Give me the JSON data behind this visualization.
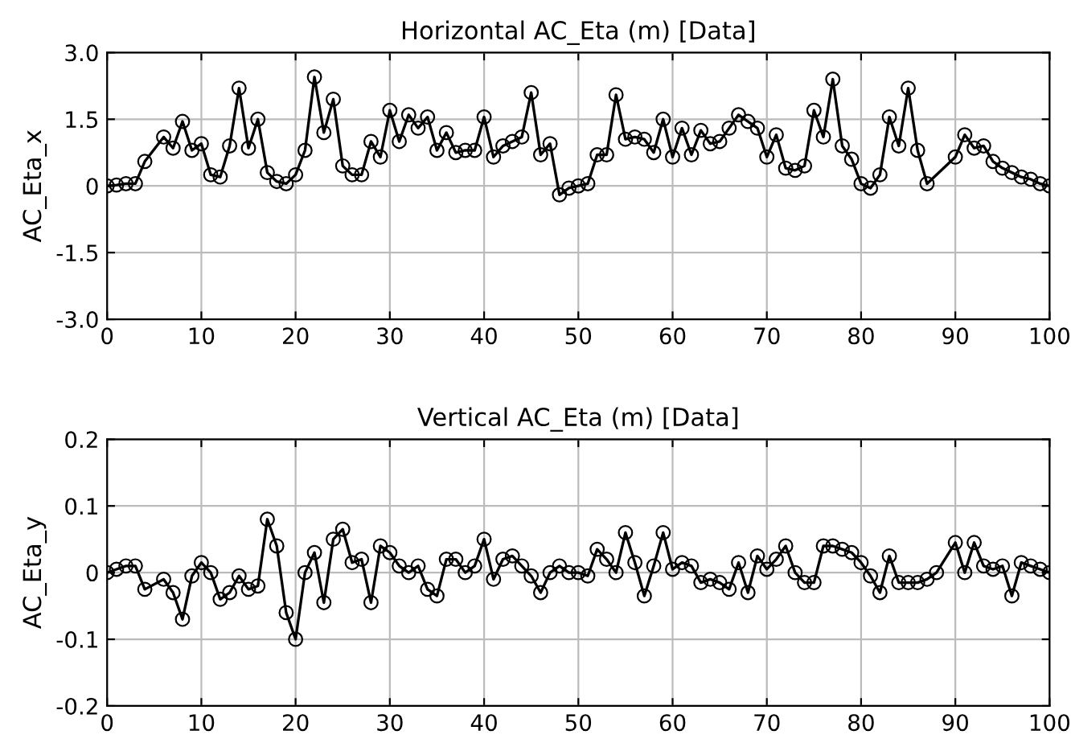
{
  "chart_data": [
    {
      "type": "line",
      "title": "Horizontal AC_Eta (m) [Data]",
      "ylabel": "AC_Eta_x",
      "grid": true,
      "marker": "circle",
      "line_style": "solid",
      "xlim": [
        0,
        100
      ],
      "xticks": [
        0,
        10,
        20,
        30,
        40,
        50,
        60,
        70,
        80,
        90,
        100
      ],
      "ylim": [
        -3.0,
        3.0
      ],
      "yticks": [
        {
          "value": -3.0,
          "label": "-3.0"
        },
        {
          "value": -1.5,
          "label": "-1.5"
        },
        0,
        1.5,
        {
          "value": 3.0,
          "label": "3.0"
        }
      ],
      "series": [
        {
          "color": "#000000",
          "x": [
            0,
            1,
            2,
            3,
            4,
            6,
            7,
            8,
            9,
            10,
            11,
            12,
            13,
            14,
            15,
            16,
            17,
            18,
            19,
            20,
            21,
            22,
            23,
            24,
            25,
            26,
            27,
            28,
            29,
            30,
            31,
            32,
            33,
            34,
            35,
            36,
            37,
            38,
            39,
            40,
            41,
            42,
            43,
            44,
            45,
            46,
            47,
            48,
            49,
            50,
            51,
            52,
            53,
            54,
            55,
            56,
            57,
            58,
            59,
            60,
            61,
            62,
            63,
            64,
            65,
            66,
            67,
            68,
            69,
            70,
            71,
            72,
            73,
            74,
            75,
            76,
            77,
            78,
            79,
            80,
            81,
            82,
            83,
            84,
            85,
            86,
            87,
            90,
            91,
            92,
            93,
            94,
            95,
            96,
            97,
            98,
            99,
            100
          ],
          "values": [
            0,
            0.02,
            0.05,
            0.05,
            0.55,
            1.1,
            0.85,
            1.45,
            0.8,
            0.95,
            0.25,
            0.2,
            0.9,
            2.2,
            0.85,
            1.5,
            0.3,
            0.1,
            0.05,
            0.25,
            0.8,
            2.45,
            1.2,
            1.95,
            0.45,
            0.25,
            0.25,
            1.0,
            0.65,
            1.7,
            1.0,
            1.6,
            1.3,
            1.55,
            0.8,
            1.2,
            0.75,
            0.8,
            0.8,
            1.55,
            0.65,
            0.9,
            1.0,
            1.1,
            2.1,
            0.7,
            0.95,
            -0.2,
            -0.05,
            0.0,
            0.05,
            0.7,
            0.7,
            2.05,
            1.05,
            1.1,
            1.05,
            0.75,
            1.5,
            0.65,
            1.3,
            0.7,
            1.25,
            0.95,
            1.0,
            1.3,
            1.6,
            1.45,
            1.3,
            0.65,
            1.15,
            0.4,
            0.35,
            0.45,
            1.7,
            1.1,
            2.4,
            0.9,
            0.6,
            0.05,
            -0.05,
            0.25,
            1.55,
            0.9,
            2.2,
            0.8,
            0.05,
            0.65,
            1.15,
            0.85,
            0.9,
            0.55,
            0.4,
            0.3,
            0.2,
            0.15,
            0.05,
            0.0
          ]
        }
      ]
    },
    {
      "type": "line",
      "title": "Vertical AC_Eta (m) [Data]",
      "ylabel": "AC_Eta_y",
      "grid": true,
      "marker": "circle",
      "line_style": "solid",
      "xlim": [
        0,
        100
      ],
      "xticks": [
        0,
        10,
        20,
        30,
        40,
        50,
        60,
        70,
        80,
        90,
        100
      ],
      "ylim": [
        -0.2,
        0.2
      ],
      "yticks": [
        -0.2,
        -0.1,
        0,
        0.1,
        0.2
      ],
      "series": [
        {
          "color": "#000000",
          "x": [
            0,
            1,
            2,
            3,
            4,
            6,
            7,
            8,
            9,
            10,
            11,
            12,
            13,
            14,
            15,
            16,
            17,
            18,
            19,
            20,
            21,
            22,
            23,
            24,
            25,
            26,
            27,
            28,
            29,
            30,
            31,
            32,
            33,
            34,
            35,
            36,
            37,
            38,
            39,
            40,
            41,
            42,
            43,
            44,
            45,
            46,
            47,
            48,
            49,
            50,
            51,
            52,
            53,
            54,
            55,
            56,
            57,
            58,
            59,
            60,
            61,
            62,
            63,
            64,
            65,
            66,
            67,
            68,
            69,
            70,
            71,
            72,
            73,
            74,
            75,
            76,
            77,
            78,
            79,
            80,
            81,
            82,
            83,
            84,
            85,
            86,
            87,
            88,
            90,
            91,
            92,
            93,
            94,
            95,
            96,
            97,
            98,
            99,
            100
          ],
          "values": [
            0,
            0.005,
            0.01,
            0.01,
            -0.025,
            -0.01,
            -0.03,
            -0.07,
            -0.005,
            0.015,
            0.0,
            -0.04,
            -0.03,
            -0.005,
            -0.025,
            -0.02,
            0.08,
            0.04,
            -0.06,
            -0.1,
            0.0,
            0.03,
            -0.045,
            0.05,
            0.065,
            0.015,
            0.02,
            -0.045,
            0.04,
            0.03,
            0.01,
            0.0,
            0.01,
            -0.025,
            -0.035,
            0.02,
            0.02,
            0.0,
            0.01,
            0.05,
            -0.01,
            0.02,
            0.025,
            0.01,
            -0.005,
            -0.03,
            0.0,
            0.01,
            0.0,
            0.0,
            -0.005,
            0.035,
            0.02,
            0.0,
            0.06,
            0.015,
            -0.035,
            0.01,
            0.06,
            0.005,
            0.015,
            0.01,
            -0.015,
            -0.01,
            -0.015,
            -0.025,
            0.015,
            -0.03,
            0.025,
            0.005,
            0.02,
            0.04,
            0.0,
            -0.015,
            -0.015,
            0.04,
            0.04,
            0.035,
            0.03,
            0.015,
            -0.005,
            -0.03,
            0.025,
            -0.015,
            -0.015,
            -0.015,
            -0.01,
            0.0,
            0.045,
            0.0,
            0.045,
            0.01,
            0.005,
            0.01,
            -0.035,
            0.015,
            0.01,
            0.005,
            0.0
          ]
        }
      ]
    }
  ]
}
